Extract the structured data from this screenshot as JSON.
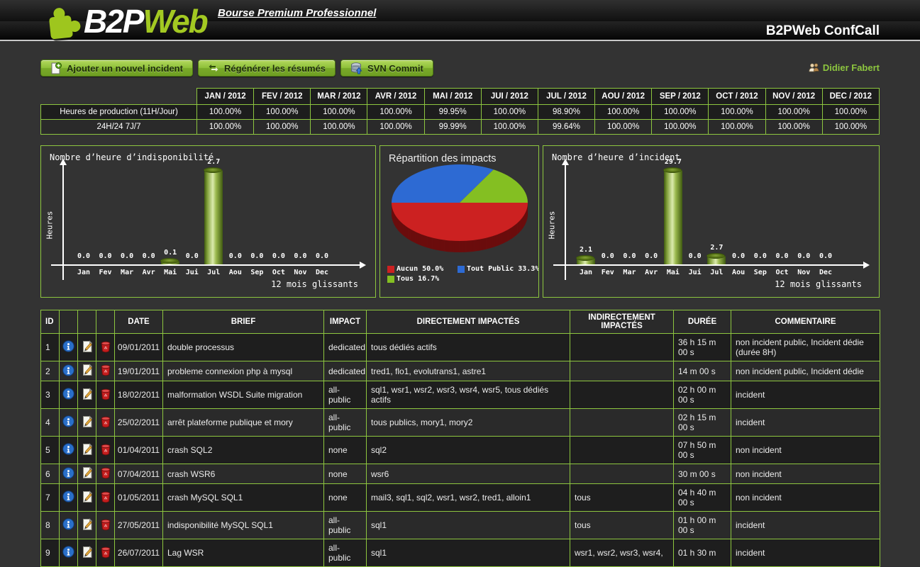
{
  "header": {
    "logo_part1": "B2P",
    "logo_part2": "Web",
    "tagline": "Bourse Premium Professionnel",
    "app_title": "B2PWeb ConfCall"
  },
  "toolbar": {
    "buttons": [
      {
        "label": "Ajouter un nouvel incident",
        "icon": "add-document-icon"
      },
      {
        "label": "Régénérer les résumés",
        "icon": "refresh-arrows-icon"
      },
      {
        "label": "SVN Commit",
        "icon": "database-commit-icon"
      }
    ],
    "user": {
      "name": "Didier Fabert",
      "icon": "users-icon"
    }
  },
  "colors": {
    "accent_green": "#8dc63f",
    "row_dark": "#1e1e1e",
    "row_light": "#2a2a2a"
  },
  "availability_table": {
    "months": [
      "JAN / 2012",
      "FEV / 2012",
      "MAR / 2012",
      "AVR / 2012",
      "MAI / 2012",
      "JUI / 2012",
      "JUL / 2012",
      "AOU / 2012",
      "SEP / 2012",
      "OCT / 2012",
      "NOV / 2012",
      "DEC / 2012"
    ],
    "rows": [
      {
        "label": "Heures de production (11H/Jour)",
        "values": [
          "100.00%",
          "100.00%",
          "100.00%",
          "100.00%",
          "99.95%",
          "100.00%",
          "98.90%",
          "100.00%",
          "100.00%",
          "100.00%",
          "100.00%",
          "100.00%"
        ]
      },
      {
        "label": "24H/24 7J/7",
        "values": [
          "100.00%",
          "100.00%",
          "100.00%",
          "100.00%",
          "99.99%",
          "100.00%",
          "99.64%",
          "100.00%",
          "100.00%",
          "100.00%",
          "100.00%",
          "100.00%"
        ]
      }
    ]
  },
  "chart_data": [
    {
      "type": "bar",
      "title": "Nombre d’heure d’indisponibilité",
      "ylabel": "Heures",
      "xlabel": "12 mois glissants",
      "categories": [
        "Jan",
        "Fev",
        "Mar",
        "Avr",
        "Mai",
        "Jui",
        "Jul",
        "Aou",
        "Sep",
        "Oct",
        "Nov",
        "Dec"
      ],
      "values": [
        0.0,
        0.0,
        0.0,
        0.0,
        0.1,
        0.0,
        2.7,
        0.0,
        0.0,
        0.0,
        0.0,
        0.0
      ],
      "value_labels": [
        "0.0",
        "0.0",
        "0.0",
        "0.0",
        "0.1",
        "0.0",
        "2.7",
        "0.0",
        "0.0",
        "0.0",
        "0.0",
        "0.0"
      ],
      "ylim": [
        0,
        3
      ],
      "grid": false,
      "bar_color": "#9ab84d"
    },
    {
      "type": "pie",
      "title": "Répartition des impacts",
      "legend_position": "bottom",
      "slices": [
        {
          "label": "Aucun",
          "value": 50.0,
          "pct_label": "50.0%",
          "color": "#cc2121"
        },
        {
          "label": "Tout Public",
          "value": 33.3,
          "pct_label": "33.3%",
          "color": "#2d6ad3"
        },
        {
          "label": "Tous",
          "value": 16.7,
          "pct_label": "16.7%",
          "color": "#84bf22"
        }
      ],
      "depth_color": "#6b0d0d"
    },
    {
      "type": "bar",
      "title": "Nombre d’heure d’incident",
      "ylabel": "Heures",
      "xlabel": "12 mois glissants",
      "categories": [
        "Jan",
        "Fev",
        "Mar",
        "Avr",
        "Mai",
        "Jui",
        "Jul",
        "Aou",
        "Sep",
        "Oct",
        "Nov",
        "Dec"
      ],
      "values": [
        2.1,
        0.0,
        0.0,
        0.0,
        29.7,
        0.0,
        2.7,
        0.0,
        0.0,
        0.0,
        0.0,
        0.0
      ],
      "value_labels": [
        "2.1",
        "0.0",
        "0.0",
        "0.0",
        "29.7",
        "0.0",
        "2.7",
        "0.0",
        "0.0",
        "0.0",
        "0.0",
        "0.0"
      ],
      "ylim": [
        0,
        30
      ],
      "grid": false,
      "bar_color": "#9ab84d"
    }
  ],
  "incidents_table": {
    "headers": [
      "ID",
      "",
      "",
      "",
      "DATE",
      "BRIEF",
      "IMPACT",
      "DIRECTEMENT IMPACTÉS",
      "INDIRECTEMENT IMPACTÉS",
      "DURÉE",
      "COMMENTAIRE"
    ],
    "row_icons": [
      "info-icon",
      "edit-icon",
      "delete-icon"
    ],
    "rows": [
      {
        "id": "1",
        "date": "09/01/2011",
        "brief": "double processus",
        "impact": "dedicated",
        "direct": "tous dédiés actifs",
        "indirect": "",
        "duration": "36 h 15 m 00 s",
        "comment": "non incident public, Incident dédie (durée 8H)"
      },
      {
        "id": "2",
        "date": "19/01/2011",
        "brief": "probleme connexion php à mysql",
        "impact": "dedicated",
        "direct": "tred1, flo1, evolutrans1, astre1",
        "indirect": "",
        "duration": "14 m 00 s",
        "comment": "non incident public, Incident dédie"
      },
      {
        "id": "3",
        "date": "18/02/2011",
        "brief": "malformation WSDL Suite migration",
        "impact": "all-public",
        "direct": "sql1, wsr1, wsr2, wsr3, wsr4, wsr5, tous dédiés actifs",
        "indirect": "",
        "duration": "02 h 00 m 00 s",
        "comment": "incident"
      },
      {
        "id": "4",
        "date": "25/02/2011",
        "brief": "arrêt plateforme publique et mory",
        "impact": "all-public",
        "direct": "tous publics, mory1, mory2",
        "indirect": "",
        "duration": "02 h 15 m 00 s",
        "comment": "incident"
      },
      {
        "id": "5",
        "date": "01/04/2011",
        "brief": "crash SQL2",
        "impact": "none",
        "direct": "sql2",
        "indirect": "",
        "duration": "07 h 50 m 00 s",
        "comment": "non incident"
      },
      {
        "id": "6",
        "date": "07/04/2011",
        "brief": "crash WSR6",
        "impact": "none",
        "direct": "wsr6",
        "indirect": "",
        "duration": "30 m 00 s",
        "comment": "non incident"
      },
      {
        "id": "7",
        "date": "01/05/2011",
        "brief": "crash MySQL SQL1",
        "impact": "none",
        "direct": "mail3, sql1, sql2, wsr1, wsr2, tred1, alloin1",
        "indirect": "tous",
        "duration": "04 h 40 m 00 s",
        "comment": "non incident"
      },
      {
        "id": "8",
        "date": "27/05/2011",
        "brief": "indisponibilité MySQL SQL1",
        "impact": "all-public",
        "direct": "sql1",
        "indirect": "tous",
        "duration": "01 h 00 m 00 s",
        "comment": "incident"
      },
      {
        "id": "9",
        "date": "26/07/2011",
        "brief": "Lag WSR",
        "impact": "all-public",
        "direct": "sql1",
        "indirect": "wsr1, wsr2, wsr3, wsr4,",
        "duration": "01 h 30 m",
        "comment": "incident"
      }
    ]
  }
}
